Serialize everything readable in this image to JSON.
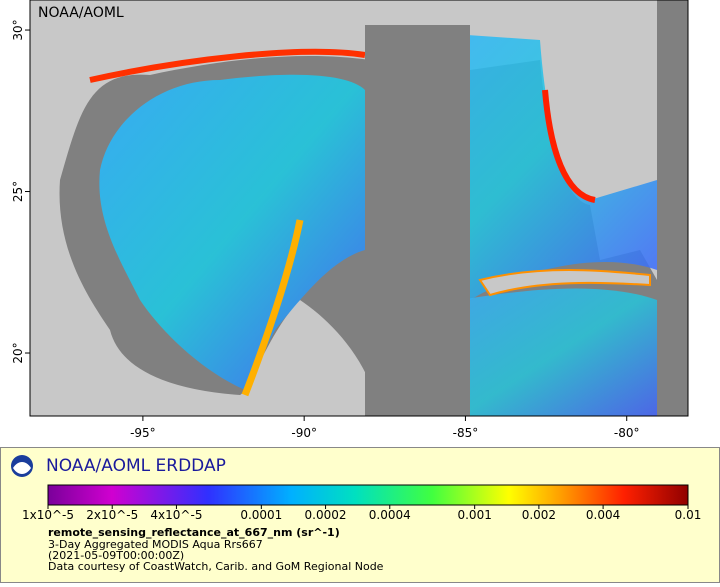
{
  "map": {
    "watermark": "NOAA/AOML",
    "lon_axis": {
      "range": [
        -98.5,
        -78.1
      ],
      "ticks": [
        {
          "value": -95,
          "label": "-95°"
        },
        {
          "value": -90,
          "label": "-90°"
        },
        {
          "value": -85,
          "label": "-85°"
        },
        {
          "value": -80,
          "label": "-80°"
        }
      ]
    },
    "lat_axis": {
      "range": [
        18.05,
        30.93
      ],
      "ticks": [
        {
          "value": 20,
          "label": "20°"
        },
        {
          "value": 25,
          "label": "25°"
        },
        {
          "value": 30,
          "label": "30°"
        }
      ]
    }
  },
  "legend": {
    "title": "NOAA/AOML ERDDAP",
    "colorbar": {
      "scale": "log",
      "range": [
        1e-05,
        0.01
      ],
      "ticks": [
        {
          "value": 1e-05,
          "label": "1x10^-5"
        },
        {
          "value": 2e-05,
          "label": "2x10^-5"
        },
        {
          "value": 4e-05,
          "label": "4x10^-5"
        },
        0.0001,
        0.0002,
        0.0004,
        0.001,
        0.002,
        0.004,
        0.01
      ]
    },
    "variable": "remote_sensing_reflectance_at_667_nm (sr^-1)",
    "lines": [
      "3-Day Aggregated MODIS Aqua Rrs667",
      "(2021-05-09T00:00:00Z)",
      "Data courtesy of CoastWatch, Carib. and GoM Regional Node"
    ]
  }
}
